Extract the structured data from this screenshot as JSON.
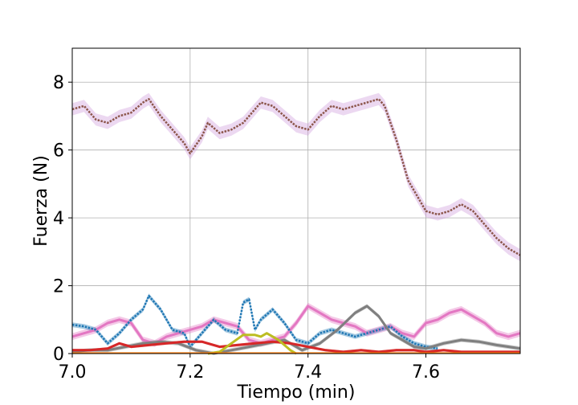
{
  "chart_data": {
    "type": "line",
    "title": "",
    "xlabel": "Tiempo (min)",
    "ylabel": "Fuerza (N)",
    "xlim": [
      7.0,
      7.76
    ],
    "ylim": [
      0,
      9
    ],
    "xticks": [
      7.0,
      7.2,
      7.4,
      7.6
    ],
    "xtick_labels": [
      "7.0",
      "7.2",
      "7.4",
      "7.6"
    ],
    "yticks": [
      0,
      2,
      4,
      6,
      8
    ],
    "ytick_labels": [
      "0",
      "2",
      "4",
      "6",
      "8"
    ],
    "grid": true,
    "legend": "none",
    "series": [
      {
        "color": "#8c564b",
        "band_color": "#c98fd6",
        "band": 0.18,
        "marker": "dot",
        "x": [
          7.0,
          7.02,
          7.04,
          7.06,
          7.08,
          7.1,
          7.12,
          7.13,
          7.15,
          7.17,
          7.19,
          7.2,
          7.22,
          7.23,
          7.25,
          7.27,
          7.29,
          7.31,
          7.32,
          7.34,
          7.36,
          7.38,
          7.4,
          7.42,
          7.44,
          7.46,
          7.48,
          7.5,
          7.52,
          7.53,
          7.55,
          7.57,
          7.59,
          7.6,
          7.62,
          7.64,
          7.66,
          7.68,
          7.7,
          7.72,
          7.74,
          7.76
        ],
        "y": [
          7.2,
          7.3,
          6.9,
          6.8,
          7.0,
          7.1,
          7.4,
          7.5,
          7.0,
          6.6,
          6.2,
          5.9,
          6.4,
          6.8,
          6.5,
          6.6,
          6.8,
          7.2,
          7.4,
          7.3,
          7.0,
          6.7,
          6.6,
          7.0,
          7.3,
          7.2,
          7.3,
          7.4,
          7.5,
          7.3,
          6.3,
          5.1,
          4.5,
          4.2,
          4.1,
          4.2,
          4.4,
          4.2,
          3.8,
          3.4,
          3.1,
          2.9
        ]
      },
      {
        "color": "#e377c2",
        "band_color": "#e377c2",
        "band": 0.1,
        "marker": "line",
        "x": [
          7.0,
          7.02,
          7.04,
          7.06,
          7.08,
          7.1,
          7.12,
          7.14,
          7.16,
          7.18,
          7.2,
          7.22,
          7.24,
          7.26,
          7.28,
          7.3,
          7.32,
          7.34,
          7.36,
          7.38,
          7.4,
          7.42,
          7.44,
          7.46,
          7.48,
          7.5,
          7.52,
          7.54,
          7.56,
          7.58,
          7.6,
          7.62,
          7.64,
          7.66,
          7.68,
          7.7,
          7.72,
          7.74,
          7.76
        ],
        "y": [
          0.5,
          0.6,
          0.7,
          0.9,
          1.0,
          0.9,
          0.4,
          0.3,
          0.5,
          0.6,
          0.7,
          0.8,
          1.0,
          0.9,
          0.8,
          0.4,
          0.3,
          0.4,
          0.5,
          0.9,
          1.4,
          1.2,
          1.0,
          0.9,
          0.8,
          0.6,
          0.7,
          0.8,
          0.6,
          0.5,
          0.9,
          1.0,
          1.2,
          1.3,
          1.1,
          0.9,
          0.6,
          0.5,
          0.6
        ]
      },
      {
        "color": "#1f77b4",
        "band_color": "#1f77b4",
        "band": 0.07,
        "marker": "dot",
        "x": [
          7.0,
          7.02,
          7.04,
          7.06,
          7.08,
          7.1,
          7.12,
          7.13,
          7.15,
          7.17,
          7.19,
          7.2,
          7.22,
          7.24,
          7.26,
          7.28,
          7.29,
          7.3,
          7.31,
          7.32,
          7.34,
          7.36,
          7.38,
          7.4,
          7.42,
          7.44,
          7.46,
          7.48,
          7.5,
          7.52,
          7.54,
          7.56,
          7.58,
          7.6,
          7.62
        ],
        "y": [
          0.85,
          0.8,
          0.7,
          0.3,
          0.6,
          1.0,
          1.3,
          1.7,
          1.3,
          0.7,
          0.6,
          0.2,
          0.6,
          1.0,
          0.7,
          0.6,
          1.5,
          1.6,
          0.7,
          1.0,
          1.3,
          0.9,
          0.4,
          0.3,
          0.6,
          0.7,
          0.6,
          0.5,
          0.6,
          0.7,
          0.8,
          0.5,
          0.3,
          0.2,
          0.15
        ]
      },
      {
        "color": "#7f7f7f",
        "band_color": "#7f7f7f",
        "band": 0.06,
        "marker": "line",
        "x": [
          7.0,
          7.03,
          7.06,
          7.09,
          7.12,
          7.15,
          7.18,
          7.21,
          7.24,
          7.27,
          7.3,
          7.33,
          7.36,
          7.39,
          7.42,
          7.45,
          7.48,
          7.5,
          7.52,
          7.54,
          7.56,
          7.58,
          7.6,
          7.63,
          7.66,
          7.69,
          7.72,
          7.76
        ],
        "y": [
          0.05,
          0.1,
          0.1,
          0.2,
          0.3,
          0.35,
          0.3,
          0.1,
          0.0,
          0.1,
          0.2,
          0.3,
          0.4,
          0.1,
          0.3,
          0.7,
          1.2,
          1.4,
          1.1,
          0.6,
          0.4,
          0.2,
          0.15,
          0.3,
          0.4,
          0.35,
          0.25,
          0.15
        ]
      },
      {
        "color": "#d62728",
        "band_color": "#d62728",
        "band": 0.04,
        "marker": "line",
        "x": [
          7.0,
          7.03,
          7.06,
          7.08,
          7.1,
          7.13,
          7.16,
          7.19,
          7.22,
          7.25,
          7.28,
          7.31,
          7.34,
          7.37,
          7.4,
          7.43,
          7.46,
          7.49,
          7.52,
          7.55,
          7.58,
          7.6,
          7.63,
          7.66,
          7.69,
          7.72,
          7.76
        ],
        "y": [
          0.1,
          0.1,
          0.15,
          0.3,
          0.2,
          0.25,
          0.3,
          0.35,
          0.35,
          0.2,
          0.25,
          0.3,
          0.35,
          0.3,
          0.2,
          0.1,
          0.05,
          0.1,
          0.05,
          0.1,
          0.1,
          0.05,
          0.1,
          0.05,
          0.05,
          0.05,
          0.05
        ]
      },
      {
        "color": "#bcbd22",
        "band_color": "#bcbd22",
        "band": 0.03,
        "marker": "line",
        "x": [
          7.23,
          7.25,
          7.27,
          7.29,
          7.31,
          7.32,
          7.33,
          7.35,
          7.37,
          7.38
        ],
        "y": [
          0.0,
          0.05,
          0.3,
          0.55,
          0.55,
          0.5,
          0.6,
          0.4,
          0.1,
          0.0
        ]
      }
    ]
  }
}
